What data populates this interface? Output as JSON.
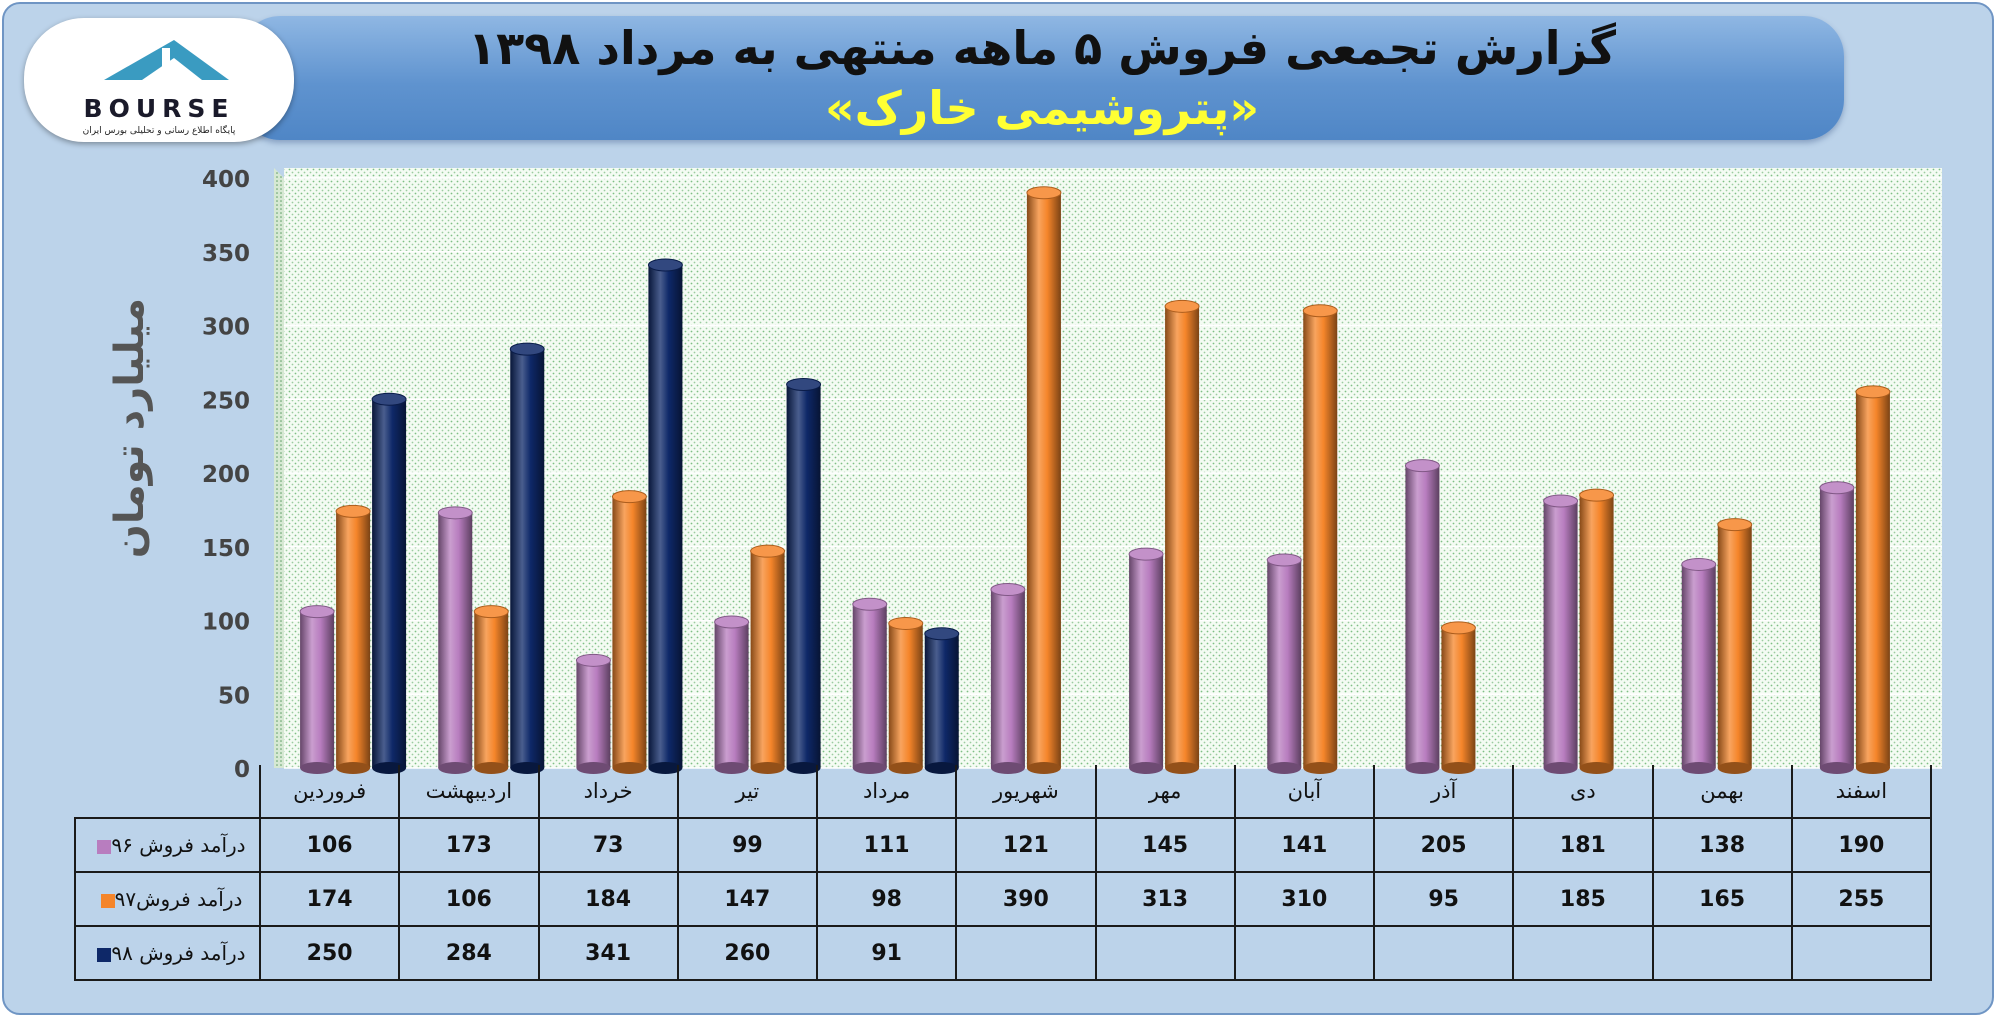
{
  "header": {
    "title": "گزارش تجمعی فروش ۵ ماهه منتهی به مرداد ۱۳۹۸",
    "subtitle": "«پتروشیمی خارک»"
  },
  "logo": {
    "text": "BOURSE",
    "subtext": "پایگاه اطلاع رسانی و تحلیلی بورس ایران"
  },
  "chart_data": {
    "type": "bar",
    "ylabel": "میلیارد تومان",
    "ylim": [
      0,
      400
    ],
    "yticks": [
      "0",
      "50",
      "100",
      "150",
      "200",
      "250",
      "300",
      "350",
      "400"
    ],
    "grid": true,
    "legend_placement": "table-left",
    "categories": [
      "فروردین",
      "اردیبهشت",
      "خرداد",
      "تیر",
      "مرداد",
      "شهریور",
      "مهر",
      "آبان",
      "آذر",
      "دی",
      "بهمن",
      "اسفند"
    ],
    "series": [
      {
        "name": "درآمد فروش ۹۶",
        "color": "#b87dbf",
        "values": [
          106,
          173,
          73,
          99,
          111,
          121,
          145,
          141,
          205,
          181,
          138,
          190
        ]
      },
      {
        "name": "درآمد فروش۹۷",
        "color": "#f5852a",
        "values": [
          174,
          106,
          184,
          147,
          98,
          390,
          313,
          310,
          95,
          185,
          165,
          255
        ]
      },
      {
        "name": "درآمد فروش ۹۸",
        "color": "#0e2868",
        "values": [
          250,
          284,
          341,
          260,
          91,
          null,
          null,
          null,
          null,
          null,
          null,
          null
        ]
      }
    ]
  }
}
